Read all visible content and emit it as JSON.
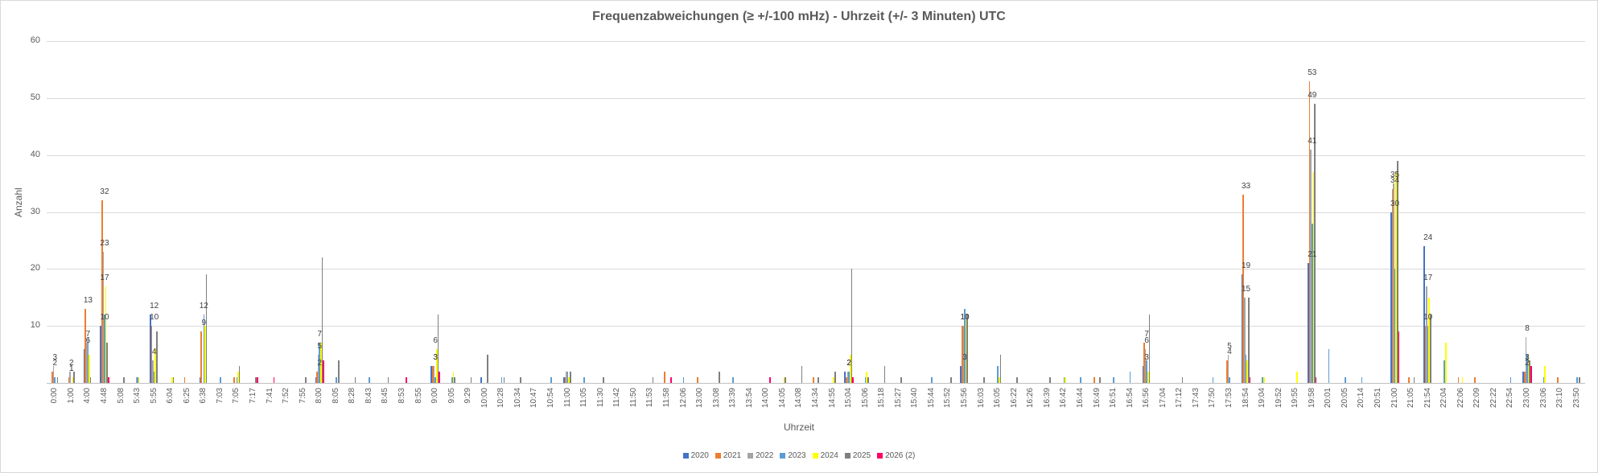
{
  "chart_data": {
    "type": "bar",
    "title": "Frequenzabweichungen (≥ +/-100 mHz) - Uhrzeit (+/- 3  Minuten) UTC",
    "xlabel": "Uhrzeit",
    "ylabel": "Anzahl",
    "ylim": [
      0,
      60
    ],
    "yticks": [
      10,
      20,
      30,
      40,
      50,
      60
    ],
    "grid": true,
    "legend_position": "bottom",
    "series_meta": [
      {
        "name": "2020",
        "color": "#4472c4"
      },
      {
        "name": "2021",
        "color": "#ed7d31"
      },
      {
        "name": "2022",
        "color": "#a5a5a5"
      },
      {
        "name": "2023",
        "color": "#5b9bd5"
      },
      {
        "name": "2024",
        "color": "#ffff00"
      },
      {
        "name": "2025",
        "color": "#7f7f7f"
      },
      {
        "name": "2026 (2)",
        "color": "#ff0066"
      }
    ],
    "categories": [
      "0:00",
      "1:00",
      "4:00",
      "4:48",
      "5:08",
      "5:43",
      "5:55",
      "6:04",
      "6:25",
      "6:38",
      "7:03",
      "7:05",
      "7:17",
      "7:41",
      "7:52",
      "7:55",
      "8:00",
      "8:05",
      "8:28",
      "8:43",
      "8:45",
      "8:53",
      "8:55",
      "9:00",
      "9:05",
      "9:29",
      "10:00",
      "10:28",
      "10:34",
      "10:47",
      "10:54",
      "11:00",
      "11:05",
      "11:30",
      "11:42",
      "11:50",
      "11:53",
      "11:58",
      "12:06",
      "13:00",
      "13:08",
      "13:39",
      "13:54",
      "14:00",
      "14:05",
      "14:08",
      "14:34",
      "14:55",
      "15:04",
      "15:06",
      "15:18",
      "15:27",
      "15:40",
      "15:44",
      "15:52",
      "15:56",
      "16:03",
      "16:05",
      "16:22",
      "16:26",
      "16:39",
      "16:42",
      "16:44",
      "16:49",
      "16:51",
      "16:54",
      "16:56",
      "17:04",
      "17:12",
      "17:43",
      "17:50",
      "17:53",
      "18:54",
      "19:04",
      "19:52",
      "19:55",
      "19:58",
      "20:01",
      "20:05",
      "20:14",
      "20:51",
      "21:00",
      "21:05",
      "21:54",
      "22:04",
      "22:06",
      "22:09",
      "22:22",
      "22:54",
      "23:00",
      "23:06",
      "23:10",
      "23:50"
    ],
    "series": [
      {
        "name": "2020",
        "values": [
          0,
          0,
          6,
          10,
          0,
          0,
          12,
          0,
          0,
          1,
          0,
          0,
          0,
          0,
          0,
          0,
          1,
          0,
          0,
          0,
          0,
          0,
          0,
          3,
          0,
          0,
          1,
          0,
          0,
          0,
          0,
          1,
          0,
          0,
          0,
          0,
          0,
          0,
          0,
          0,
          0,
          0,
          0,
          0,
          0,
          0,
          0,
          0,
          2,
          0,
          0,
          0,
          0,
          0,
          0,
          3,
          0,
          0,
          0,
          0,
          0,
          0,
          0,
          0,
          0,
          0,
          3,
          0,
          0,
          0,
          0,
          0,
          19,
          0,
          0,
          0,
          21,
          0,
          0,
          0,
          0,
          30,
          0,
          24,
          0,
          0,
          0,
          0,
          0,
          2,
          0,
          0,
          0
        ]
      },
      {
        "name": "2021",
        "values": [
          2,
          1,
          13,
          32,
          0,
          0,
          10,
          0,
          1,
          9,
          0,
          1,
          0,
          0,
          0,
          0,
          2,
          0,
          0,
          0,
          0,
          0,
          0,
          3,
          0,
          0,
          0,
          0,
          0,
          0,
          0,
          1,
          0,
          0,
          0,
          0,
          0,
          2,
          0,
          1,
          0,
          0,
          0,
          0,
          0,
          0,
          1,
          0,
          1,
          0,
          0,
          0,
          0,
          0,
          0,
          10,
          0,
          0,
          0,
          0,
          0,
          0,
          0,
          1,
          0,
          0,
          7,
          0,
          0,
          0,
          0,
          4,
          33,
          0,
          0,
          0,
          53,
          0,
          0,
          0,
          0,
          34,
          1,
          10,
          0,
          1,
          1,
          0,
          0,
          2,
          0,
          1,
          0
        ]
      },
      {
        "name": "2022",
        "values": [
          3,
          2,
          7,
          23,
          0,
          1,
          4,
          0,
          0,
          0,
          0,
          0,
          0,
          0,
          0,
          0,
          5,
          0,
          0,
          0,
          0,
          0,
          0,
          3,
          0,
          0,
          0,
          0,
          0,
          0,
          0,
          2,
          0,
          0,
          0,
          0,
          0,
          0,
          0,
          0,
          0,
          0,
          0,
          0,
          0,
          0,
          0,
          0,
          2,
          0,
          0,
          0,
          0,
          0,
          0,
          10,
          0,
          0,
          0,
          0,
          0,
          0,
          0,
          0,
          0,
          0,
          6,
          0,
          0,
          0,
          0,
          5,
          15,
          0,
          0,
          0,
          41,
          0,
          0,
          0,
          0,
          35,
          0,
          17,
          0,
          0,
          0,
          0,
          0,
          8,
          0,
          0,
          0
        ]
      },
      {
        "name": "2023",
        "values": [
          1,
          0,
          8,
          12,
          0,
          1,
          2,
          0,
          0,
          12,
          1,
          1,
          0,
          0,
          0,
          0,
          7,
          1,
          0,
          1,
          0,
          0,
          0,
          1,
          1,
          0,
          0,
          1,
          0,
          0,
          1,
          2,
          1,
          0,
          0,
          0,
          0,
          0,
          1,
          0,
          0,
          1,
          0,
          0,
          0,
          0,
          0,
          0,
          2,
          1,
          0,
          0,
          0,
          1,
          0,
          13,
          0,
          3,
          0,
          0,
          0,
          1,
          1,
          0,
          1,
          2,
          4,
          0,
          0,
          0,
          1,
          1,
          5,
          1,
          0,
          0,
          28,
          6,
          1,
          1,
          0,
          20,
          0,
          10,
          4,
          0,
          0,
          0,
          1,
          5,
          1,
          0,
          1
        ]
      },
      {
        "name": "2024",
        "values": [
          0,
          1,
          5,
          17,
          0,
          1,
          6,
          1,
          0,
          10,
          0,
          2,
          0,
          0,
          0,
          0,
          7,
          0,
          0,
          0,
          0,
          0,
          0,
          6,
          2,
          0,
          0,
          0,
          0,
          0,
          0,
          1,
          0,
          0,
          0,
          0,
          0,
          0,
          0,
          0,
          0,
          0,
          0,
          0,
          1,
          0,
          0,
          1,
          5,
          2,
          0,
          0,
          0,
          0,
          0,
          11,
          0,
          1,
          0,
          0,
          0,
          1,
          0,
          0,
          0,
          0,
          2,
          0,
          0,
          0,
          0,
          0,
          4,
          1,
          0,
          2,
          37,
          0,
          0,
          0,
          0,
          37,
          0,
          15,
          7,
          1,
          0,
          0,
          0,
          5,
          3,
          0,
          0
        ]
      },
      {
        "name": "2025",
        "values": [
          1,
          2,
          1,
          7,
          1,
          0,
          9,
          1,
          0,
          19,
          0,
          3,
          1,
          0,
          0,
          1,
          22,
          4,
          1,
          0,
          1,
          0,
          0,
          12,
          1,
          1,
          5,
          1,
          1,
          0,
          0,
          2,
          0,
          1,
          0,
          0,
          1,
          0,
          0,
          0,
          2,
          0,
          0,
          0,
          1,
          3,
          1,
          2,
          20,
          1,
          3,
          1,
          0,
          0,
          1,
          12,
          1,
          5,
          1,
          0,
          1,
          0,
          0,
          1,
          0,
          0,
          12,
          0,
          1,
          0,
          0,
          0,
          15,
          0,
          0,
          0,
          49,
          0,
          0,
          0,
          0,
          39,
          1,
          12,
          0,
          0,
          0,
          0,
          0,
          4,
          0,
          0,
          1
        ]
      },
      {
        "name": "2026 (2)",
        "values": [
          0,
          0,
          0,
          1,
          0,
          0,
          0,
          0,
          0,
          0,
          0,
          0,
          1,
          1,
          0,
          0,
          4,
          0,
          0,
          0,
          0,
          1,
          0,
          2,
          0,
          0,
          0,
          0,
          0,
          0,
          0,
          0,
          0,
          0,
          0,
          0,
          0,
          1,
          0,
          0,
          0,
          0,
          0,
          1,
          0,
          0,
          0,
          0,
          1,
          0,
          0,
          0,
          0,
          0,
          0,
          0,
          0,
          0,
          0,
          0,
          0,
          0,
          0,
          0,
          0,
          0,
          0,
          0,
          0,
          0,
          0,
          0,
          1,
          0,
          0,
          0,
          1,
          0,
          0,
          0,
          0,
          9,
          0,
          0,
          0,
          0,
          0,
          0,
          0,
          3,
          0,
          0,
          0
        ]
      }
    ],
    "annotations": [
      {
        "category": "0:00",
        "labels": [
          "2",
          "3"
        ]
      },
      {
        "category": "1:00",
        "labels": [
          "1",
          "2",
          "1"
        ]
      },
      {
        "category": "4:00",
        "labels": [
          "13",
          "6",
          "7"
        ]
      },
      {
        "category": "4:48",
        "labels": [
          "10",
          "32",
          "23",
          "17"
        ]
      },
      {
        "category": "5:55",
        "labels": [
          "12",
          "10",
          "4"
        ]
      },
      {
        "category": "6:38",
        "labels": [
          "9",
          "12"
        ]
      },
      {
        "category": "8:00",
        "labels": [
          "2",
          "5",
          "7"
        ]
      },
      {
        "category": "9:00",
        "labels": [
          "3",
          "3",
          "6"
        ]
      },
      {
        "category": "15:04",
        "labels": [
          "2",
          "2",
          "2"
        ]
      },
      {
        "category": "15:56",
        "labels": [
          "3",
          "10",
          "10"
        ]
      },
      {
        "category": "16:56",
        "labels": [
          "3",
          "7",
          "6"
        ]
      },
      {
        "category": "17:53",
        "labels": [
          "4",
          "5"
        ]
      },
      {
        "category": "18:54",
        "labels": [
          "19",
          "33",
          "15"
        ]
      },
      {
        "category": "19:58",
        "labels": [
          "21",
          "53",
          "41",
          "49"
        ]
      },
      {
        "category": "21:00",
        "labels": [
          "30",
          "34",
          "35"
        ]
      },
      {
        "category": "21:54",
        "labels": [
          "24",
          "10",
          "17"
        ]
      },
      {
        "category": "23:00",
        "labels": [
          "3",
          "2",
          "8"
        ]
      }
    ]
  }
}
